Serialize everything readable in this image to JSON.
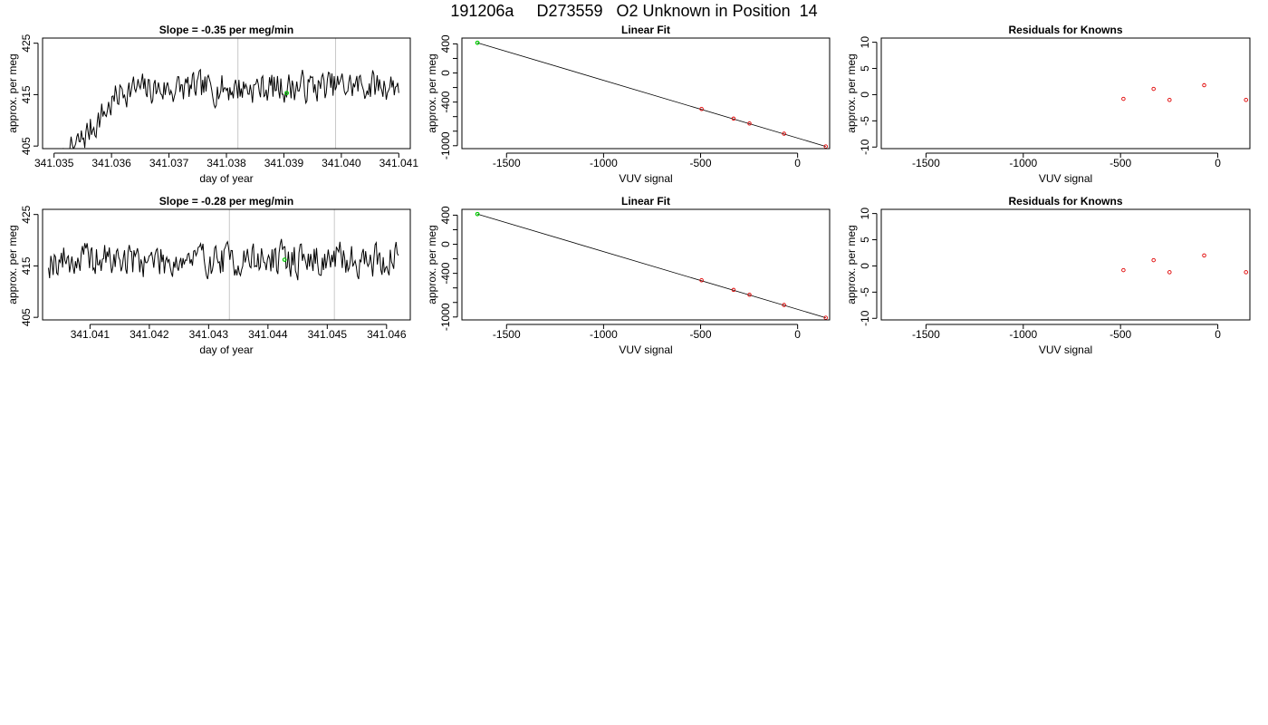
{
  "figure": {
    "title": "191206a     D273559   O2 Unknown in Position  14"
  },
  "chart_data": [
    {
      "id": "ts1",
      "type": "line",
      "title": "Slope =  -0.35  per meg/min",
      "xlabel": "day of year",
      "ylabel": "approx. per meg",
      "xlim": [
        341.0348,
        341.0412
      ],
      "ylim": [
        404.5,
        426
      ],
      "xticks": [
        341.035,
        341.036,
        341.037,
        341.038,
        341.039,
        341.04,
        341.041
      ],
      "xtick_labels": [
        "341.035",
        "341.036",
        "341.037",
        "341.038",
        "341.039",
        "341.040",
        "341.041"
      ],
      "yticks": [
        405,
        415,
        425
      ],
      "ytick_labels": [
        "405",
        "415",
        "425"
      ],
      "vlines": [
        341.0382,
        341.0399
      ],
      "green_point": {
        "x": 341.03905,
        "y": 415.3
      },
      "series": [
        {
          "x_start": 341.0351,
          "x_end": 341.041,
          "n": 300,
          "seed": 7,
          "mean": 416.3,
          "sd": 1.6,
          "start": 401.6,
          "ramp_end": 341.0362,
          "trend": 1.1
        }
      ]
    },
    {
      "id": "fit1",
      "type": "scatter",
      "title": "Linear Fit",
      "xlabel": "VUV signal",
      "ylabel": "approx. per meg",
      "xlim": [
        -1730,
        165
      ],
      "ylim": [
        -1040,
        480
      ],
      "xticks": [
        -1500,
        -1000,
        -500,
        0
      ],
      "xtick_labels": [
        "-1500",
        "-1000",
        "-500",
        "0"
      ],
      "yticks": [
        -1000,
        -800,
        -600,
        -400,
        -200,
        0,
        200,
        400
      ],
      "ytick_labels": [
        "-1000",
        "",
        "",
        "-400",
        "",
        "0",
        "",
        "400"
      ],
      "line": [
        [
          -1650,
          415
        ],
        [
          145,
          -1010
        ]
      ],
      "points": [
        [
          -495,
          -495
        ],
        [
          -330,
          -628
        ],
        [
          -248,
          -695
        ],
        [
          -70,
          -835
        ],
        [
          145,
          -1010
        ]
      ],
      "green_point": [
        -1650,
        415
      ]
    },
    {
      "id": "res1",
      "type": "scatter",
      "title": "Residuals for Knowns",
      "xlabel": "VUV signal",
      "ylabel": "approx. per meg",
      "xlim": [
        -1730,
        165
      ],
      "ylim": [
        -10.3,
        10.8
      ],
      "xticks": [
        -1500,
        -1000,
        -500,
        0
      ],
      "xtick_labels": [
        "-1500",
        "-1000",
        "-500",
        "0"
      ],
      "yticks": [
        -10,
        -5,
        0,
        5,
        10
      ],
      "ytick_labels": [
        "-10",
        "-5",
        "0",
        "5",
        "10"
      ],
      "points": [
        [
          -485,
          -0.8
        ],
        [
          -330,
          1.1
        ],
        [
          -248,
          -1.0
        ],
        [
          -70,
          1.8
        ],
        [
          145,
          -1.0
        ]
      ]
    },
    {
      "id": "ts2",
      "type": "line",
      "title": "Slope =  -0.28  per meg/min",
      "xlabel": "day of year",
      "ylabel": "approx. per meg",
      "xlim": [
        341.0402,
        341.0464
      ],
      "ylim": [
        404.5,
        426
      ],
      "xticks": [
        341.041,
        341.042,
        341.043,
        341.044,
        341.045,
        341.046
      ],
      "xtick_labels": [
        "341.041",
        "341.042",
        "341.043",
        "341.044",
        "341.045",
        "341.046"
      ],
      "yticks": [
        405,
        415,
        425
      ],
      "ytick_labels": [
        "405",
        "415",
        "425"
      ],
      "vlines": [
        341.04335,
        341.04512
      ],
      "green_point": {
        "x": 341.04428,
        "y": 416.2
      },
      "series": [
        {
          "x_start": 341.0403,
          "x_end": 341.0462,
          "n": 300,
          "seed": 19,
          "mean": 416.2,
          "sd": 1.8,
          "start": 418.5,
          "ramp_end": 341.0403,
          "trend": 0.0
        }
      ]
    },
    {
      "id": "fit2",
      "type": "scatter",
      "title": "Linear Fit",
      "xlabel": "VUV signal",
      "ylabel": "approx. per meg",
      "xlim": [
        -1730,
        165
      ],
      "ylim": [
        -1040,
        480
      ],
      "xticks": [
        -1500,
        -1000,
        -500,
        0
      ],
      "xtick_labels": [
        "-1500",
        "-1000",
        "-500",
        "0"
      ],
      "yticks": [
        -1000,
        -800,
        -600,
        -400,
        -200,
        0,
        200,
        400
      ],
      "ytick_labels": [
        "-1000",
        "",
        "",
        "-400",
        "",
        "0",
        "",
        "400"
      ],
      "line": [
        [
          -1650,
          415
        ],
        [
          145,
          -1010
        ]
      ],
      "points": [
        [
          -495,
          -495
        ],
        [
          -330,
          -628
        ],
        [
          -248,
          -695
        ],
        [
          -70,
          -835
        ],
        [
          145,
          -1010
        ]
      ],
      "green_point": [
        -1650,
        415
      ]
    },
    {
      "id": "res2",
      "type": "scatter",
      "title": "Residuals for Knowns",
      "xlabel": "VUV signal",
      "ylabel": "approx. per meg",
      "xlim": [
        -1730,
        165
      ],
      "ylim": [
        -10.3,
        10.8
      ],
      "xticks": [
        -1500,
        -1000,
        -500,
        0
      ],
      "xtick_labels": [
        "-1500",
        "-1000",
        "-500",
        "0"
      ],
      "yticks": [
        -10,
        -5,
        0,
        5,
        10
      ],
      "ytick_labels": [
        "-10",
        "-5",
        "0",
        "5",
        "10"
      ],
      "points": [
        [
          -485,
          -0.8
        ],
        [
          -330,
          1.1
        ],
        [
          -248,
          -1.2
        ],
        [
          -70,
          2.0
        ],
        [
          145,
          -1.2
        ]
      ]
    }
  ]
}
